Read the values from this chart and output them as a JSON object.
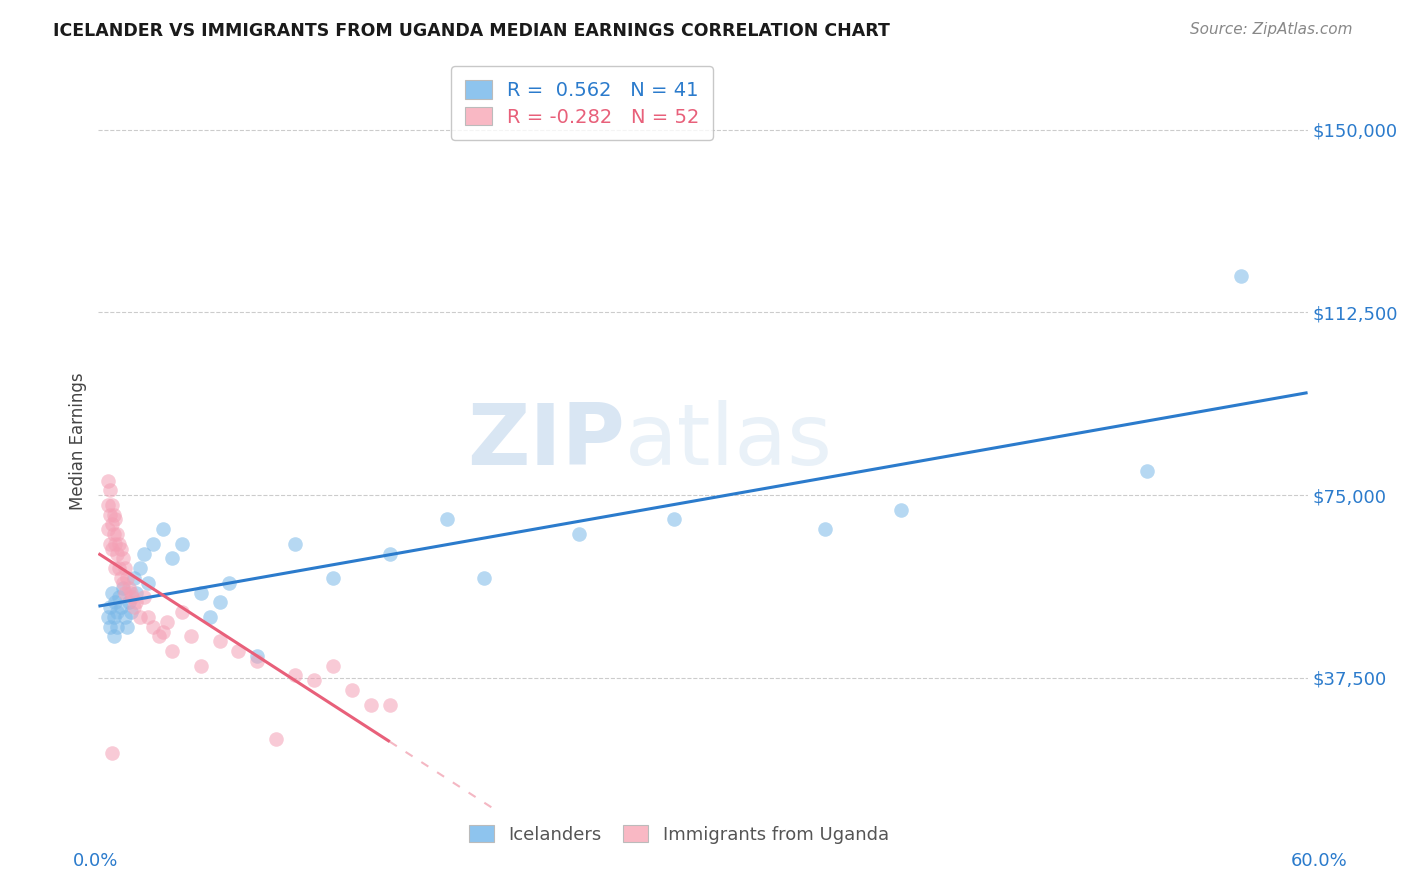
{
  "title": "ICELANDER VS IMMIGRANTS FROM UGANDA MEDIAN EARNINGS CORRELATION CHART",
  "source": "Source: ZipAtlas.com",
  "ylabel": "Median Earnings",
  "ytick_labels": [
    "$37,500",
    "$75,000",
    "$112,500",
    "$150,000"
  ],
  "ytick_values": [
    37500,
    75000,
    112500,
    150000
  ],
  "ymin": 10000,
  "ymax": 162000,
  "xmin": -0.004,
  "xmax": 0.635,
  "legend1_text": "R =  0.562   N = 41",
  "legend2_text": "R = -0.282   N = 52",
  "legend1_color": "#8EC4EE",
  "legend2_color": "#F9B8C4",
  "blue_scatter_color": "#7BB8E8",
  "pink_scatter_color": "#F4A0B5",
  "blue_line_color": "#2B7BCC",
  "pink_line_color": "#E8607A",
  "background_color": "#FFFFFF",
  "grid_color": "#CCCCCC",
  "icelanders_x": [
    0.001,
    0.002,
    0.002,
    0.003,
    0.004,
    0.004,
    0.005,
    0.006,
    0.006,
    0.007,
    0.008,
    0.009,
    0.01,
    0.011,
    0.012,
    0.013,
    0.015,
    0.016,
    0.018,
    0.02,
    0.022,
    0.025,
    0.03,
    0.035,
    0.04,
    0.05,
    0.055,
    0.06,
    0.065,
    0.08,
    0.1,
    0.12,
    0.15,
    0.18,
    0.2,
    0.25,
    0.3,
    0.38,
    0.42,
    0.55,
    0.6
  ],
  "icelanders_y": [
    50000,
    52000,
    48000,
    55000,
    50000,
    46000,
    53000,
    51000,
    48000,
    54000,
    52000,
    56000,
    50000,
    48000,
    53000,
    51000,
    58000,
    55000,
    60000,
    63000,
    57000,
    65000,
    68000,
    62000,
    65000,
    55000,
    50000,
    53000,
    57000,
    42000,
    65000,
    58000,
    63000,
    70000,
    58000,
    67000,
    70000,
    68000,
    72000,
    80000,
    120000
  ],
  "uganda_x": [
    0.001,
    0.001,
    0.001,
    0.002,
    0.002,
    0.002,
    0.003,
    0.003,
    0.003,
    0.004,
    0.004,
    0.005,
    0.005,
    0.005,
    0.006,
    0.006,
    0.007,
    0.007,
    0.008,
    0.008,
    0.009,
    0.009,
    0.01,
    0.01,
    0.011,
    0.012,
    0.013,
    0.014,
    0.015,
    0.016,
    0.018,
    0.02,
    0.022,
    0.025,
    0.028,
    0.03,
    0.032,
    0.035,
    0.04,
    0.045,
    0.05,
    0.06,
    0.07,
    0.08,
    0.09,
    0.1,
    0.11,
    0.12,
    0.13,
    0.14,
    0.15,
    0.003
  ],
  "uganda_y": [
    78000,
    73000,
    68000,
    76000,
    71000,
    65000,
    73000,
    69000,
    64000,
    71000,
    67000,
    70000,
    65000,
    60000,
    67000,
    63000,
    65000,
    60000,
    64000,
    58000,
    62000,
    57000,
    60000,
    55000,
    58000,
    56000,
    55000,
    54000,
    52000,
    53000,
    50000,
    54000,
    50000,
    48000,
    46000,
    47000,
    49000,
    43000,
    51000,
    46000,
    40000,
    45000,
    43000,
    41000,
    25000,
    38000,
    37000,
    40000,
    35000,
    32000,
    32000,
    22000
  ]
}
